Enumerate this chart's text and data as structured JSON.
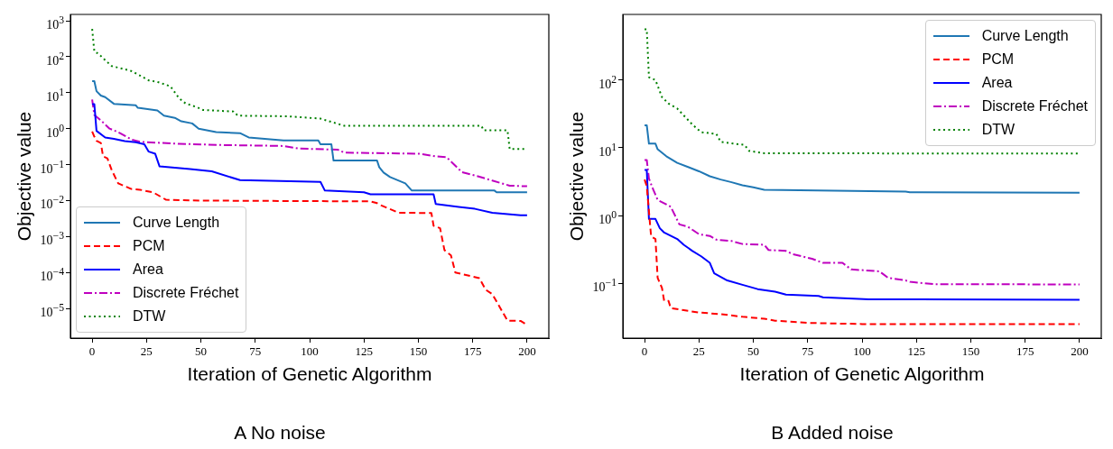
{
  "chart_data": [
    {
      "type": "line",
      "title": "A No noise",
      "xlabel": "Iteration of Genetic Algorithm",
      "ylabel": "Objective value",
      "log": "y",
      "legend": "bottom left",
      "xlim": [
        -10,
        210
      ],
      "xticks": [
        0,
        25,
        50,
        75,
        100,
        125,
        150,
        175,
        200
      ],
      "ylim": [
        1.5e-06,
        1500
      ],
      "yticks": [
        {
          "value": 1e-05,
          "label": "10$^{−5}$"
        },
        {
          "value": 0.0001,
          "label": "10$^{−4}$"
        },
        {
          "value": 0.001,
          "label": "10$^{−3}$"
        },
        {
          "value": 0.01,
          "label": "10$^{−2}$"
        },
        {
          "value": 0.1,
          "label": "10$^{−1}$"
        },
        {
          "value": 1,
          "label": "10$^{0}$"
        },
        {
          "value": 10,
          "label": "10$^{1}$"
        },
        {
          "value": 100,
          "label": "10$^{2}$"
        },
        {
          "value": 1000,
          "label": "10$^{3}$"
        }
      ],
      "series": [
        {
          "name": "Curve Length",
          "color": "#1f77b4",
          "line_style": "solid",
          "x": [
            0,
            1,
            2,
            4,
            6,
            10,
            20,
            21,
            30,
            33,
            38,
            41,
            46,
            49,
            57,
            68,
            72,
            83,
            88,
            104,
            105,
            110,
            111,
            131,
            132,
            134,
            137,
            144,
            147,
            185,
            186,
            200
          ],
          "values": [
            21,
            21,
            11,
            8.3,
            7.5,
            4.9,
            4.5,
            3.8,
            3.2,
            2.3,
            2.0,
            1.6,
            1.4,
            1.0,
            0.8,
            0.75,
            0.57,
            0.5,
            0.47,
            0.47,
            0.37,
            0.37,
            0.13,
            0.13,
            0.085,
            0.06,
            0.045,
            0.03,
            0.019,
            0.019,
            0.017,
            0.017
          ]
        },
        {
          "name": "PCM",
          "color": "#ff0000",
          "line_style": "dashed",
          "x": [
            0,
            1,
            2,
            4,
            5,
            7,
            9,
            12,
            18,
            22,
            28,
            34,
            50,
            128,
            131,
            133,
            141,
            156,
            157,
            160,
            162,
            165,
            167,
            174,
            178,
            181,
            184,
            191,
            197,
            199,
            200
          ],
          "values": [
            0.83,
            0.6,
            0.46,
            0.4,
            0.17,
            0.15,
            0.07,
            0.03,
            0.021,
            0.02,
            0.017,
            0.0105,
            0.01,
            0.0095,
            0.0085,
            0.0073,
            0.0046,
            0.0045,
            0.002,
            0.0017,
            0.00042,
            0.0003,
            0.0001,
            8e-05,
            7e-05,
            3.3e-05,
            2.5e-05,
            4.6e-06,
            4.5e-06,
            3.8e-06,
            3.8e-06
          ]
        },
        {
          "name": "Area",
          "color": "#0000ff",
          "line_style": "solid",
          "x": [
            0,
            1,
            2,
            6,
            10,
            15,
            20,
            24,
            26,
            29,
            31,
            45,
            55,
            68,
            105,
            107,
            125,
            128,
            157,
            158,
            176,
            184,
            197,
            200
          ],
          "values": [
            4.8,
            4.8,
            0.87,
            0.57,
            0.52,
            0.45,
            0.42,
            0.37,
            0.23,
            0.2,
            0.089,
            0.075,
            0.065,
            0.037,
            0.033,
            0.019,
            0.017,
            0.015,
            0.015,
            0.008,
            0.0059,
            0.0046,
            0.0039,
            0.0039
          ]
        },
        {
          "name": "Discrete Fréchet",
          "color": "#bf00bf",
          "line_style": "dashdot",
          "x": [
            0,
            1,
            4,
            8,
            12,
            18,
            22,
            40,
            60,
            88,
            95,
            113,
            116,
            151,
            158,
            163,
            170,
            176,
            184,
            192,
            200
          ],
          "values": [
            6.5,
            2.4,
            1.7,
            1.0,
            0.8,
            0.5,
            0.43,
            0.38,
            0.35,
            0.33,
            0.28,
            0.26,
            0.215,
            0.2,
            0.17,
            0.16,
            0.062,
            0.05,
            0.036,
            0.026,
            0.025
          ]
        },
        {
          "name": "DTW",
          "color": "#008000",
          "line_style": "dotted",
          "x": [
            0,
            1,
            3,
            6,
            9,
            13,
            18,
            22,
            26,
            30,
            36,
            40,
            43,
            48,
            51,
            65,
            67,
            90,
            105,
            116,
            179,
            180,
            191,
            192,
            200
          ],
          "values": [
            590,
            140,
            120,
            80,
            55,
            48,
            40,
            30,
            22,
            20,
            15,
            7,
            5,
            4,
            3.3,
            3.0,
            2.3,
            2.2,
            1.9,
            1.2,
            1.2,
            0.9,
            0.9,
            0.27,
            0.27
          ]
        }
      ]
    },
    {
      "type": "line",
      "title": "B Added noise",
      "xlabel": "Iteration of Genetic Algorithm",
      "ylabel": "Objective value",
      "log": "y",
      "legend": "top right",
      "xlim": [
        -10,
        210
      ],
      "xticks": [
        0,
        25,
        50,
        75,
        100,
        125,
        150,
        175,
        200
      ],
      "ylim": [
        0.0155,
        930
      ],
      "yticks": [
        {
          "value": 0.1,
          "label": "10$^{−1}$"
        },
        {
          "value": 1,
          "label": "10$^{0}$"
        },
        {
          "value": 10,
          "label": "10$^{1}$"
        },
        {
          "value": 100,
          "label": "10$^{2}$"
        }
      ],
      "series": [
        {
          "name": "Curve Length",
          "color": "#1f77b4",
          "line_style": "solid",
          "x": [
            0,
            1,
            2,
            5,
            6,
            10,
            15,
            20,
            25,
            30,
            35,
            40,
            45,
            50,
            55,
            120,
            122,
            200
          ],
          "values": [
            21.5,
            21.5,
            11.5,
            11.5,
            9.5,
            7.5,
            6,
            5.2,
            4.5,
            3.8,
            3.4,
            3.1,
            2.8,
            2.6,
            2.4,
            2.25,
            2.2,
            2.17
          ]
        },
        {
          "name": "PCM",
          "color": "#ff0000",
          "line_style": "dashed",
          "x": [
            0,
            1,
            3,
            5,
            6,
            8,
            9,
            11,
            12,
            18,
            25,
            35,
            45,
            55,
            60,
            75,
            100,
            200
          ],
          "values": [
            3.4,
            2.7,
            0.49,
            0.45,
            0.12,
            0.085,
            0.055,
            0.055,
            0.043,
            0.04,
            0.037,
            0.035,
            0.032,
            0.03,
            0.028,
            0.026,
            0.025,
            0.025
          ]
        },
        {
          "name": "Area",
          "color": "#0000ff",
          "line_style": "solid",
          "x": [
            0,
            1,
            2,
            5,
            7,
            9,
            15,
            18,
            22,
            26,
            30,
            32,
            38,
            45,
            52,
            60,
            65,
            80,
            82,
            103,
            200
          ],
          "values": [
            4.7,
            4.7,
            0.89,
            0.89,
            0.65,
            0.56,
            0.45,
            0.37,
            0.3,
            0.25,
            0.2,
            0.14,
            0.11,
            0.095,
            0.082,
            0.075,
            0.068,
            0.065,
            0.062,
            0.058,
            0.057
          ]
        },
        {
          "name": "Discrete Fréchet",
          "color": "#bf00bf",
          "line_style": "dashdot",
          "x": [
            0,
            1,
            2,
            4,
            6,
            12,
            14,
            16,
            20,
            25,
            30,
            33,
            40,
            45,
            55,
            57,
            65,
            68,
            77,
            82,
            91,
            95,
            108,
            112,
            120,
            122,
            133,
            200
          ],
          "values": [
            6.6,
            6.6,
            3.5,
            2.4,
            1.7,
            1.35,
            1.0,
            0.74,
            0.68,
            0.53,
            0.5,
            0.44,
            0.42,
            0.38,
            0.37,
            0.31,
            0.3,
            0.27,
            0.23,
            0.2,
            0.2,
            0.16,
            0.15,
            0.12,
            0.11,
            0.105,
            0.097,
            0.096
          ]
        },
        {
          "name": "DTW",
          "color": "#008000",
          "line_style": "dotted",
          "x": [
            0,
            1,
            2,
            5,
            8,
            11,
            15,
            18,
            22,
            26,
            33,
            35,
            46,
            48,
            55,
            200
          ],
          "values": [
            560,
            560,
            110,
            100,
            56,
            45,
            38,
            30,
            22,
            17,
            16,
            12.2,
            11,
            9.0,
            8.3,
            8.2
          ]
        }
      ]
    }
  ]
}
